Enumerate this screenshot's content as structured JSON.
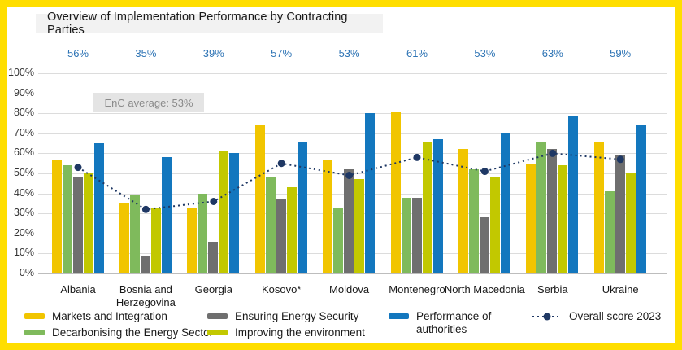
{
  "title": "Overview of Implementation Performance by Contracting Parties",
  "enc_average_label": "EnC average: 53%",
  "colors": {
    "frame": "#FFDE00",
    "title_band_bg": "#F2F2F2",
    "top_label_text": "#2E74B5",
    "grid": "#DCDCDC",
    "enc_box_bg": "#E4E4E4",
    "markets": "#F1C500",
    "decarbonising": "#7FBA5C",
    "security": "#6F6F6F",
    "environment": "#C2C800",
    "authorities": "#1377BE",
    "overall_line": "#1F3864"
  },
  "y_axis": {
    "ticks": [
      "100%",
      "90%",
      "80%",
      "70%",
      "60%",
      "50%",
      "40%",
      "30%",
      "20%",
      "10%",
      "0%"
    ]
  },
  "chart_data": {
    "type": "bar",
    "title": "Overview of Implementation Performance by Contracting Parties",
    "categories": [
      "Albania",
      "Bosnia and Herzegovina",
      "Georgia",
      "Kosovo*",
      "Moldova",
      "Montenegro",
      "North Macedonia",
      "Serbia",
      "Ukraine"
    ],
    "top_labels": [
      "56%",
      "35%",
      "39%",
      "57%",
      "53%",
      "61%",
      "53%",
      "63%",
      "59%"
    ],
    "series": [
      {
        "name": "Markets and Integration",
        "color": "#F1C500",
        "values": [
          57,
          35,
          33,
          74,
          57,
          81,
          62,
          55,
          66
        ]
      },
      {
        "name": "Decarbonising the Energy Sector",
        "color": "#7FBA5C",
        "values": [
          54,
          39,
          40,
          48,
          33,
          38,
          52,
          66,
          41
        ]
      },
      {
        "name": "Ensuring Energy Security",
        "color": "#6F6F6F",
        "values": [
          48,
          9,
          16,
          37,
          52,
          38,
          28,
          62,
          59
        ]
      },
      {
        "name": "Improving the environment",
        "color": "#C2C800",
        "values": [
          50,
          33,
          61,
          43,
          47,
          66,
          48,
          54,
          50
        ]
      },
      {
        "name": "Performance of authorities",
        "color": "#1377BE",
        "values": [
          65,
          58,
          60,
          66,
          80,
          67,
          70,
          79,
          74
        ]
      }
    ],
    "line_series": {
      "name": "Overall score 2023",
      "color": "#1F3864",
      "values": [
        53,
        32,
        36,
        55,
        49,
        58,
        51,
        60,
        57
      ]
    },
    "xlabel": "",
    "ylabel": "",
    "ylim": [
      0,
      100
    ],
    "ytick_step": 10,
    "grid": true,
    "legend_position": "bottom",
    "annotation": "EnC average: 53%"
  }
}
